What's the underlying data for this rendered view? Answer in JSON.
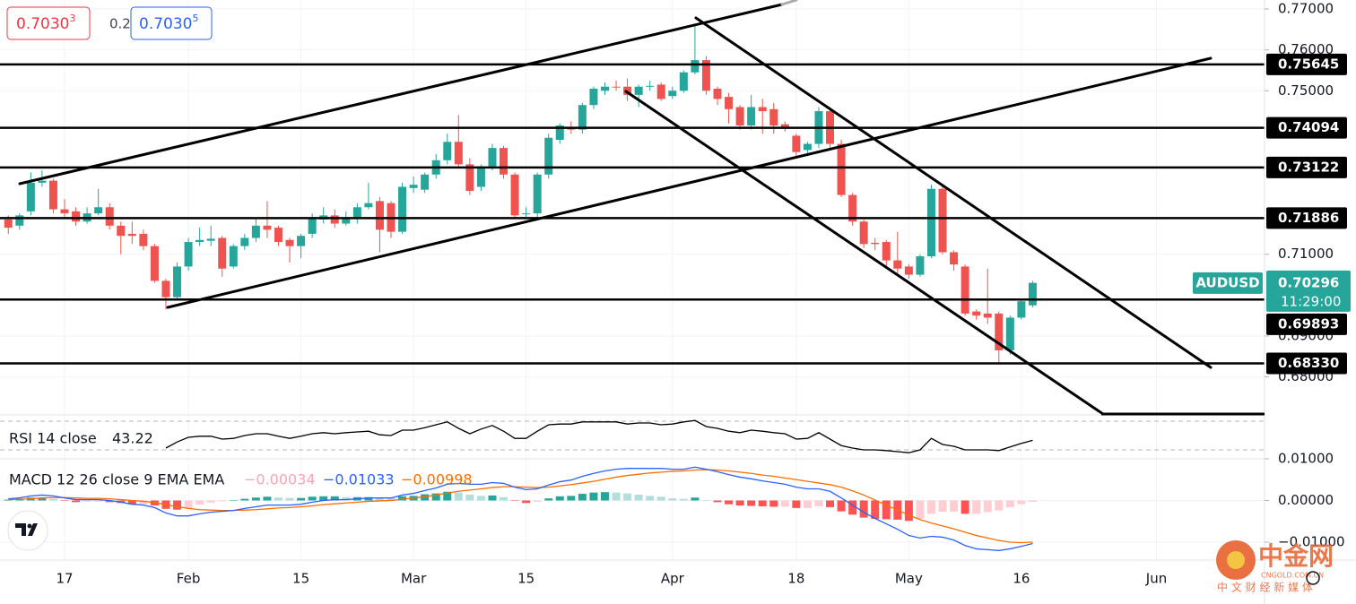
{
  "header": {
    "bid": {
      "main": "0.7030",
      "pip": "3"
    },
    "spread": "0.2",
    "ask": {
      "main": "0.7030",
      "pip": "5"
    }
  },
  "watermark": {
    "name": "中金网",
    "site": "CNGOLD.COM.CN",
    "tagline": "中 文 财 经 新 媒 体"
  },
  "chart_data": [
    {
      "type": "candlestick",
      "symbol": "AUDUSD",
      "last_price": 0.70296,
      "countdown": "11:29:00",
      "up_color": "#26a69a",
      "down_color": "#ef5350",
      "level_color": "#000000",
      "xlim": [
        -0.737,
        111.6
      ],
      "ylim": [
        0.6707,
        0.7722
      ],
      "xticks": [
        {
          "value": 5,
          "label": "17"
        },
        {
          "value": 16,
          "label": "Feb"
        },
        {
          "value": 26,
          "label": "15"
        },
        {
          "value": 36,
          "label": "Mar"
        },
        {
          "value": 46,
          "label": "15"
        },
        {
          "value": 59,
          "label": "Apr"
        },
        {
          "value": 70,
          "label": "18"
        },
        {
          "value": 80,
          "label": "May"
        },
        {
          "value": 90,
          "label": "16"
        },
        {
          "value": 102,
          "label": "Jun"
        }
      ],
      "yticks": [
        {
          "value": 0.77,
          "label": "0.77000"
        },
        {
          "value": 0.76,
          "label": "0.76000"
        },
        {
          "value": 0.75,
          "label": "0.75000"
        },
        {
          "value": 0.71,
          "label": "0.71000"
        },
        {
          "value": 0.69,
          "label": "0.69000"
        },
        {
          "value": 0.68,
          "label": "0.68000"
        }
      ],
      "levels": [
        0.75645,
        0.74094,
        0.73122,
        0.71886,
        0.69893,
        {
          "value": 0.6833,
          "label": "0.68330"
        }
      ],
      "ohlc": [
        [
          0.7185,
          0.7195,
          0.715,
          0.7165
        ],
        [
          0.717,
          0.72,
          0.716,
          0.7195
        ],
        [
          0.7205,
          0.73,
          0.7195,
          0.7275
        ],
        [
          0.7275,
          0.7305,
          0.7265,
          0.728
        ],
        [
          0.728,
          0.7285,
          0.72,
          0.721
        ],
        [
          0.721,
          0.7235,
          0.719,
          0.72
        ],
        [
          0.7205,
          0.7215,
          0.717,
          0.718
        ],
        [
          0.718,
          0.7215,
          0.7175,
          0.72
        ],
        [
          0.72,
          0.726,
          0.7195,
          0.7215
        ],
        [
          0.7215,
          0.7225,
          0.716,
          0.717
        ],
        [
          0.717,
          0.718,
          0.71,
          0.7145
        ],
        [
          0.715,
          0.718,
          0.7125,
          0.7145
        ],
        [
          0.715,
          0.716,
          0.711,
          0.712
        ],
        [
          0.712,
          0.7125,
          0.703,
          0.7035
        ],
        [
          0.7035,
          0.704,
          0.6965,
          0.6995
        ],
        [
          0.6995,
          0.708,
          0.699,
          0.707
        ],
        [
          0.707,
          0.714,
          0.706,
          0.713
        ],
        [
          0.713,
          0.7165,
          0.712,
          0.7135
        ],
        [
          0.7133,
          0.717,
          0.712,
          0.7138
        ],
        [
          0.714,
          0.7145,
          0.7045,
          0.7065
        ],
        [
          0.707,
          0.7125,
          0.7065,
          0.712
        ],
        [
          0.712,
          0.715,
          0.711,
          0.714
        ],
        [
          0.714,
          0.719,
          0.713,
          0.717
        ],
        [
          0.717,
          0.723,
          0.714,
          0.716
        ],
        [
          0.7165,
          0.717,
          0.712,
          0.713
        ],
        [
          0.7135,
          0.714,
          0.708,
          0.712
        ],
        [
          0.712,
          0.715,
          0.709,
          0.7145
        ],
        [
          0.715,
          0.72,
          0.714,
          0.719
        ],
        [
          0.7185,
          0.7215,
          0.7175,
          0.7195
        ],
        [
          0.7195,
          0.721,
          0.7165,
          0.7175
        ],
        [
          0.7175,
          0.7205,
          0.717,
          0.719
        ],
        [
          0.719,
          0.7225,
          0.7175,
          0.7215
        ],
        [
          0.7215,
          0.7275,
          0.721,
          0.7225
        ],
        [
          0.723,
          0.724,
          0.7105,
          0.716
        ],
        [
          0.7225,
          0.723,
          0.714,
          0.7155
        ],
        [
          0.7155,
          0.7275,
          0.715,
          0.7265
        ],
        [
          0.7262,
          0.729,
          0.725,
          0.727
        ],
        [
          0.7258,
          0.73,
          0.725,
          0.7295
        ],
        [
          0.7295,
          0.7345,
          0.7285,
          0.733
        ],
        [
          0.733,
          0.7395,
          0.732,
          0.7375
        ],
        [
          0.7375,
          0.7441,
          0.7315,
          0.732
        ],
        [
          0.732,
          0.7335,
          0.7245,
          0.7255
        ],
        [
          0.7265,
          0.732,
          0.7255,
          0.7315
        ],
        [
          0.7315,
          0.737,
          0.7305,
          0.736
        ],
        [
          0.736,
          0.7365,
          0.7285,
          0.7295
        ],
        [
          0.7295,
          0.73,
          0.719,
          0.7195
        ],
        [
          0.7198,
          0.7215,
          0.719,
          0.72
        ],
        [
          0.72,
          0.73,
          0.719,
          0.7295
        ],
        [
          0.7295,
          0.7395,
          0.7285,
          0.7385
        ],
        [
          0.738,
          0.742,
          0.737,
          0.7415
        ],
        [
          0.741,
          0.7425,
          0.7395,
          0.7405
        ],
        [
          0.7405,
          0.747,
          0.7395,
          0.7465
        ],
        [
          0.7465,
          0.751,
          0.7455,
          0.7505
        ],
        [
          0.75,
          0.752,
          0.749,
          0.751
        ],
        [
          0.751,
          0.7525,
          0.75,
          0.7508
        ],
        [
          0.751,
          0.753,
          0.7475,
          0.749
        ],
        [
          0.749,
          0.7515,
          0.746,
          0.751
        ],
        [
          0.751,
          0.7525,
          0.75,
          0.7512
        ],
        [
          0.7515,
          0.752,
          0.7475,
          0.748
        ],
        [
          0.7487,
          0.751,
          0.748,
          0.75
        ],
        [
          0.75,
          0.755,
          0.7495,
          0.7545
        ],
        [
          0.7545,
          0.7662,
          0.754,
          0.7575
        ],
        [
          0.7575,
          0.7585,
          0.749,
          0.75
        ],
        [
          0.7505,
          0.751,
          0.7465,
          0.748
        ],
        [
          0.7485,
          0.7495,
          0.742,
          0.7455
        ],
        [
          0.746,
          0.7465,
          0.7405,
          0.7415
        ],
        [
          0.7415,
          0.749,
          0.7405,
          0.746
        ],
        [
          0.746,
          0.748,
          0.7395,
          0.745
        ],
        [
          0.7455,
          0.747,
          0.7395,
          0.7415
        ],
        [
          0.7418,
          0.7425,
          0.74,
          0.7412
        ],
        [
          0.739,
          0.7395,
          0.734,
          0.735
        ],
        [
          0.7355,
          0.7375,
          0.734,
          0.737
        ],
        [
          0.737,
          0.746,
          0.736,
          0.745
        ],
        [
          0.745,
          0.7455,
          0.736,
          0.737
        ],
        [
          0.737,
          0.738,
          0.724,
          0.7245
        ],
        [
          0.7245,
          0.725,
          0.717,
          0.718
        ],
        [
          0.718,
          0.7185,
          0.7115,
          0.7125
        ],
        [
          0.7128,
          0.714,
          0.711,
          0.7125
        ],
        [
          0.713,
          0.7135,
          0.707,
          0.7085
        ],
        [
          0.7085,
          0.7155,
          0.705,
          0.7065
        ],
        [
          0.707,
          0.7075,
          0.704,
          0.705
        ],
        [
          0.705,
          0.71,
          0.7045,
          0.7095
        ],
        [
          0.7095,
          0.727,
          0.709,
          0.726
        ],
        [
          0.726,
          0.7265,
          0.71,
          0.7105
        ],
        [
          0.7105,
          0.711,
          0.706,
          0.7075
        ],
        [
          0.707,
          0.7075,
          0.695,
          0.6955
        ],
        [
          0.696,
          0.6965,
          0.694,
          0.695
        ],
        [
          0.6955,
          0.7065,
          0.693,
          0.6945
        ],
        [
          0.6955,
          0.696,
          0.683,
          0.6865
        ],
        [
          0.6865,
          0.695,
          0.6855,
          0.6945
        ],
        [
          0.6945,
          0.699,
          0.694,
          0.6985
        ],
        [
          0.6975,
          0.7035,
          0.697,
          0.703
        ]
      ]
    },
    {
      "type": "line",
      "title": "RSI 14 close",
      "color": "#000000",
      "ylim": [
        17.5,
        76.25
      ],
      "bands": [
        70,
        30
      ],
      "values": [
        null,
        null,
        null,
        null,
        null,
        null,
        null,
        null,
        null,
        null,
        null,
        null,
        null,
        null,
        32.5,
        41,
        47.5,
        49,
        49,
        45,
        46,
        50,
        52.5,
        52.5,
        49,
        46,
        49,
        52.5,
        54,
        52.5,
        54,
        55,
        56,
        51,
        50,
        57.5,
        57.5,
        61,
        65,
        69,
        60,
        52.5,
        59,
        64,
        56,
        46,
        46,
        56,
        65,
        66,
        66,
        69,
        69,
        69,
        69,
        66,
        67.5,
        67.5,
        65,
        66,
        69,
        71,
        62.5,
        60,
        56,
        54,
        57.5,
        56,
        54,
        52.5,
        45,
        46,
        54,
        45,
        36,
        32.5,
        30,
        30,
        29,
        27.5,
        26,
        30,
        46,
        37.5,
        35,
        30,
        30,
        30,
        29,
        34,
        39,
        43.22
      ]
    },
    {
      "type": "macd",
      "title": "MACD 12 26 close 9 EMA EMA",
      "ylim": [
        -0.0143,
        0.00935
      ],
      "yticks": [
        {
          "value": 0.01,
          "label": "0.01000"
        },
        {
          "value": 0,
          "label": "0.00000"
        },
        {
          "value": -0.01,
          "label": "−0.01000"
        }
      ],
      "histogram": {
        "colors": {
          "grow_above": "#26a69a",
          "fall_above": "#b2dfdb",
          "grow_below": "#ffcdd2",
          "fall_below": "#ff5252"
        },
        "legend_color": "#f7a6b4",
        "last_label": "−0.00034",
        "values": [
          0.0002,
          0.0003,
          0.0007,
          0.0007,
          0.0004,
          -0.0001,
          -0.0004,
          -0.0003,
          -0.0003,
          -0.0004,
          -0.0006,
          -0.0009,
          -0.0009,
          -0.0012,
          -0.002,
          -0.0022,
          -0.0018,
          -0.001,
          -0.0005,
          -0.0002,
          0,
          0.0004,
          0.0007,
          0.0009,
          0.0007,
          0.0006,
          0.0006,
          0.0009,
          0.001,
          0.001,
          0.0008,
          0.0008,
          0.0008,
          0.0007,
          0.0006,
          0.001,
          0.0011,
          0.0015,
          0.0017,
          0.0021,
          0.0019,
          0.0014,
          0.0011,
          0.0012,
          0.0008,
          -0.0001,
          -0.0006,
          -0.0003,
          0.0005,
          0.001,
          0.0011,
          0.0016,
          0.0019,
          0.002,
          0.0019,
          0.0017,
          0.0014,
          0.0011,
          0.0009,
          0.0005,
          0.0004,
          0.0007,
          0.0001,
          -0.0004,
          -0.0009,
          -0.0012,
          -0.0013,
          -0.0014,
          -0.0015,
          -0.0015,
          -0.0018,
          -0.0018,
          -0.0014,
          -0.0016,
          -0.0026,
          -0.0034,
          -0.0041,
          -0.0044,
          -0.0045,
          -0.0046,
          -0.0049,
          -0.0044,
          -0.0032,
          -0.0027,
          -0.0027,
          -0.0032,
          -0.0032,
          -0.0028,
          -0.0024,
          -0.0016,
          -0.0009,
          -0.00034
        ]
      },
      "macd": {
        "color": "#2962ff",
        "last_label": "−0.01033",
        "values": [
          0.0004,
          0.0006,
          0.0011,
          0.0013,
          0.0011,
          0.0006,
          0.0002,
          0.0002,
          0.0002,
          0,
          -0.0004,
          -0.0009,
          -0.0011,
          -0.0017,
          -0.003,
          -0.0037,
          -0.0037,
          -0.0032,
          -0.0028,
          -0.0026,
          -0.0024,
          -0.0019,
          -0.0015,
          -0.0011,
          -0.0011,
          -0.0011,
          -0.0009,
          -0.0004,
          0,
          0.0002,
          0.0002,
          0.0004,
          0.0006,
          0.0006,
          0.0006,
          0.0013,
          0.0017,
          0.0024,
          0.003,
          0.0039,
          0.0041,
          0.0039,
          0.0039,
          0.0043,
          0.0041,
          0.0032,
          0.0026,
          0.0028,
          0.0037,
          0.0045,
          0.0049,
          0.0058,
          0.0065,
          0.0071,
          0.0075,
          0.0077,
          0.0077,
          0.0077,
          0.0077,
          0.0075,
          0.0075,
          0.008,
          0.0075,
          0.0069,
          0.0062,
          0.0056,
          0.0052,
          0.0047,
          0.0043,
          0.0039,
          0.0032,
          0.0028,
          0.0028,
          0.0022,
          0.0006,
          -0.0011,
          -0.0028,
          -0.0043,
          -0.0056,
          -0.0069,
          -0.0084,
          -0.009,
          -0.0086,
          -0.0088,
          -0.0095,
          -0.0108,
          -0.0116,
          -0.0118,
          -0.012,
          -0.0116,
          -0.011,
          -0.01033
        ]
      },
      "signal": {
        "color": "#ff6d00",
        "last_label": "−0.00998",
        "values": [
          0.0002,
          0.0003,
          0.0004,
          0.0006,
          0.0007,
          0.0007,
          0.0006,
          0.0005,
          0.0005,
          0.0004,
          0.0002,
          0,
          -0.0002,
          -0.0005,
          -0.001,
          -0.0015,
          -0.0019,
          -0.0022,
          -0.0023,
          -0.0024,
          -0.0024,
          -0.0023,
          -0.0022,
          -0.002,
          -0.0018,
          -0.0017,
          -0.0015,
          -0.0013,
          -0.001,
          -0.0008,
          -0.0006,
          -0.0004,
          -0.0002,
          -0.0001,
          0,
          0.0003,
          0.0006,
          0.0009,
          0.0013,
          0.0018,
          0.0022,
          0.0025,
          0.0028,
          0.0031,
          0.0033,
          0.0033,
          0.0032,
          0.0031,
          0.0032,
          0.0035,
          0.0038,
          0.0042,
          0.0046,
          0.0051,
          0.0056,
          0.006,
          0.0063,
          0.0066,
          0.0068,
          0.007,
          0.0071,
          0.0073,
          0.0074,
          0.0073,
          0.0071,
          0.0068,
          0.0065,
          0.0061,
          0.0058,
          0.0054,
          0.005,
          0.0046,
          0.0042,
          0.0038,
          0.0032,
          0.0023,
          0.0013,
          0.0001,
          -0.0011,
          -0.0023,
          -0.0035,
          -0.0046,
          -0.0054,
          -0.0061,
          -0.0068,
          -0.0076,
          -0.0084,
          -0.009,
          -0.0096,
          -0.01,
          -0.0101,
          -0.00998
        ]
      }
    }
  ]
}
